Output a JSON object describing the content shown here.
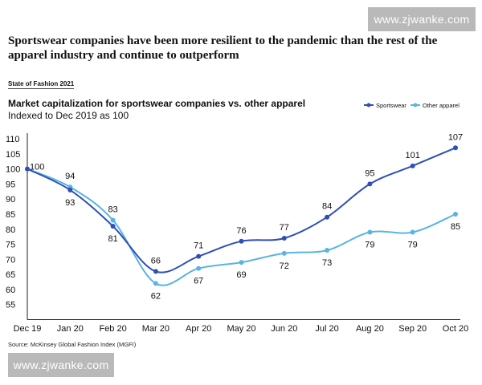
{
  "watermark": {
    "top_text": "www.zjwanke.com",
    "bottom_text": "www.zjwanke.com"
  },
  "headline": "Sportswear companies have been more resilient to the pandemic than the rest of the apparel industry and continue to outperform",
  "report_label": "State of Fashion 2021",
  "source": "Source: McKinsey Global Fashion Index (MGFI)",
  "colors": {
    "sportswear": "#2e4fb6",
    "other_apparel": "#5ab4e2",
    "axis": "#222222",
    "text": "#111111"
  },
  "chart_data": {
    "type": "line",
    "title": "Market capitalization for sportswear companies vs. other apparel",
    "subtitle": "Indexed to Dec 2019 as 100",
    "xlabel": "",
    "ylabel": "",
    "categories": [
      "Dec 19",
      "Jan 20",
      "Feb 20",
      "Mar 20",
      "Apr 20",
      "May 20",
      "Jun 20",
      "Jul 20",
      "Aug 20",
      "Sep 20",
      "Oct 20"
    ],
    "yticks": [
      55,
      60,
      65,
      70,
      75,
      80,
      85,
      90,
      95,
      100,
      105,
      110
    ],
    "ylim": [
      50,
      110
    ],
    "legend_position": "top-right",
    "series": [
      {
        "name": "Sportswear",
        "values": [
          100,
          93,
          81,
          66,
          71,
          76,
          77,
          84,
          95,
          101,
          107
        ],
        "labels": [
          "100",
          "93",
          "81",
          "66",
          "71",
          "76",
          "77",
          "84",
          "95",
          "101",
          "107"
        ]
      },
      {
        "name": "Other apparel",
        "values": [
          100,
          94,
          83,
          62,
          67,
          69,
          72,
          73,
          79,
          79,
          85
        ],
        "labels": [
          "",
          "94",
          "83",
          "62",
          "67",
          "69",
          "72",
          "73",
          "79",
          "79",
          "85"
        ]
      }
    ]
  }
}
